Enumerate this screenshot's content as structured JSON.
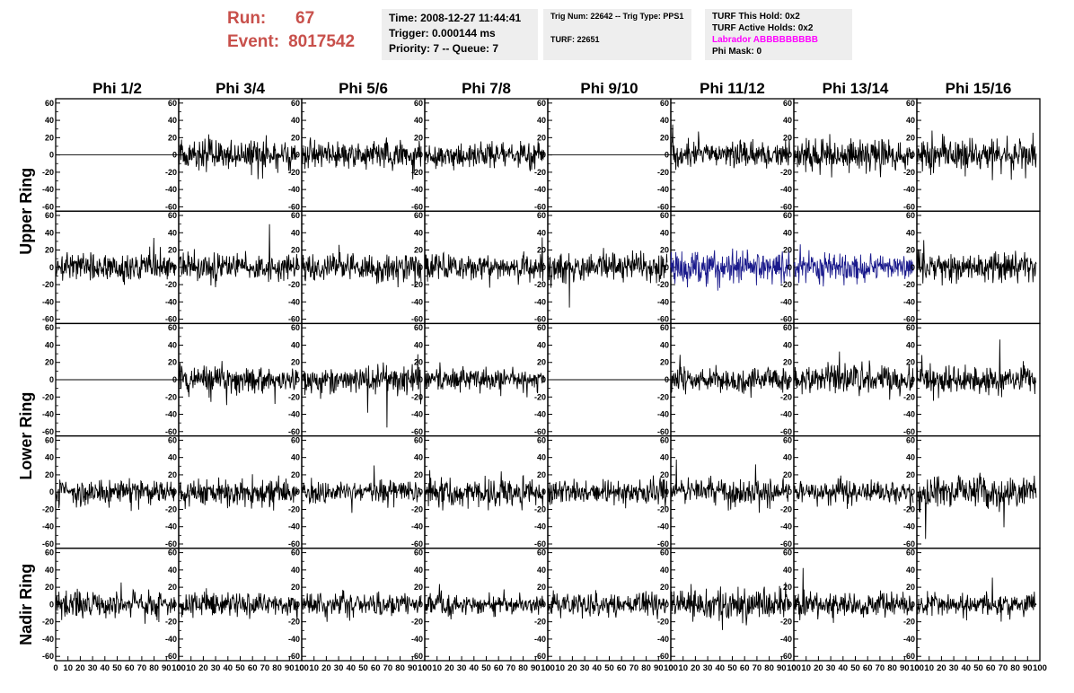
{
  "header": {
    "run_label": "Run:",
    "run_value": "67",
    "event_label": "Event:",
    "event_value": "8017542",
    "time_box": {
      "time": "Time: 2008-12-27 11:44:41",
      "trigger": "Trigger: 0.000144 ms",
      "priority": "Priority: 7 -- Queue: 7"
    },
    "trig_box": {
      "trig": "Trig Num: 22642 -- Trig Type: PPS1",
      "turf": "TURF: 22651"
    },
    "turf_box": {
      "this_hold": "TURF This Hold: 0x2",
      "active_holds": "TURF Active Holds: 0x2",
      "labrador": "Labrador ABBBBBBBBB",
      "phi_mask": "Phi Mask: 0"
    }
  },
  "chart_data": {
    "type": "line",
    "columns": [
      "Phi 1/2",
      "Phi 3/4",
      "Phi 5/6",
      "Phi 7/8",
      "Phi 9/10",
      "Phi 11/12",
      "Phi 13/14",
      "Phi 15/16"
    ],
    "row_groups": [
      "Upper Ring",
      "Lower Ring",
      "Nadir Ring"
    ],
    "rows_per_group": [
      2,
      2,
      1
    ],
    "xlim": [
      0,
      100
    ],
    "ylim": [
      -65,
      65
    ],
    "x_ticks": [
      0,
      10,
      20,
      30,
      40,
      50,
      60,
      70,
      80,
      90,
      100
    ],
    "y_ticks": [
      -60,
      -40,
      -20,
      0,
      20,
      40,
      60
    ],
    "colors": {
      "trace": "#000000",
      "highlight": "#1a1a8c",
      "axis": "#000000"
    },
    "flat_panels": [
      [
        0,
        0
      ],
      [
        0,
        4
      ],
      [
        2,
        0
      ],
      [
        2,
        4
      ]
    ],
    "highlight_panels": [
      [
        1,
        5
      ],
      [
        1,
        6
      ]
    ],
    "panel_amplitude": [
      [
        0,
        14,
        13,
        12,
        0,
        12,
        15,
        17
      ],
      [
        13,
        13,
        13,
        13,
        15,
        16,
        13,
        14
      ],
      [
        0,
        13,
        14,
        11,
        0,
        11,
        14,
        13
      ],
      [
        12,
        13,
        11,
        14,
        12,
        12,
        12,
        15
      ],
      [
        13,
        11,
        11,
        10,
        12,
        15,
        12,
        11
      ]
    ],
    "samples_per_trace": 260
  }
}
